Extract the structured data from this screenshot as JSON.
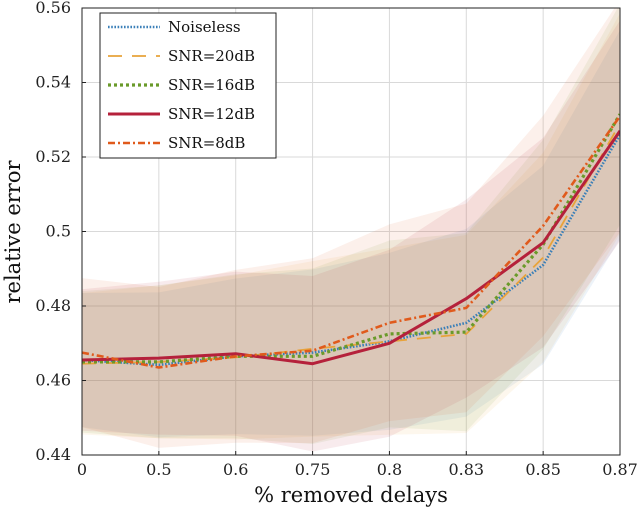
{
  "chart_data": {
    "type": "line",
    "title": "",
    "xlabel": "% removed delays",
    "ylabel": "relative error",
    "categories": [
      "0",
      "0.5",
      "0.6",
      "0.75",
      "0.8",
      "0.83",
      "0.85",
      "0.87"
    ],
    "ylim": [
      0.44,
      0.56
    ],
    "yticks": [
      "0.44",
      "0.46",
      "0.48",
      "0.5",
      "0.52",
      "0.54",
      "0.56"
    ],
    "grid": true,
    "legend_position": "top-left",
    "series": [
      {
        "name": "Noiseless",
        "color": "#3a7fb8",
        "dash": "dotted",
        "values": [
          0.4655,
          0.4642,
          0.4665,
          0.4675,
          0.4705,
          0.4755,
          0.491,
          0.526
        ],
        "band": 0.018
      },
      {
        "name": "SNR=20dB",
        "color": "#e8a33a",
        "dash": "dashed",
        "values": [
          0.4645,
          0.465,
          0.4662,
          0.4685,
          0.4705,
          0.4725,
          0.493,
          0.529
        ],
        "band": 0.019
      },
      {
        "name": "SNR=16dB",
        "color": "#6a9a2a",
        "dash": "dotted-thick",
        "values": [
          0.465,
          0.465,
          0.4665,
          0.4665,
          0.4725,
          0.473,
          0.4965,
          0.5315
        ],
        "band": 0.019
      },
      {
        "name": "SNR=12dB",
        "color": "#b5213b",
        "dash": "solid",
        "values": [
          0.4655,
          0.466,
          0.4672,
          0.4645,
          0.47,
          0.482,
          0.497,
          0.527
        ],
        "band": 0.019
      },
      {
        "name": "SNR=8dB",
        "color": "#e05a1c",
        "dash": "dashdot",
        "values": [
          0.4675,
          0.4635,
          0.4665,
          0.468,
          0.4755,
          0.4795,
          0.5015,
          0.531
        ],
        "band": 0.02
      }
    ]
  }
}
